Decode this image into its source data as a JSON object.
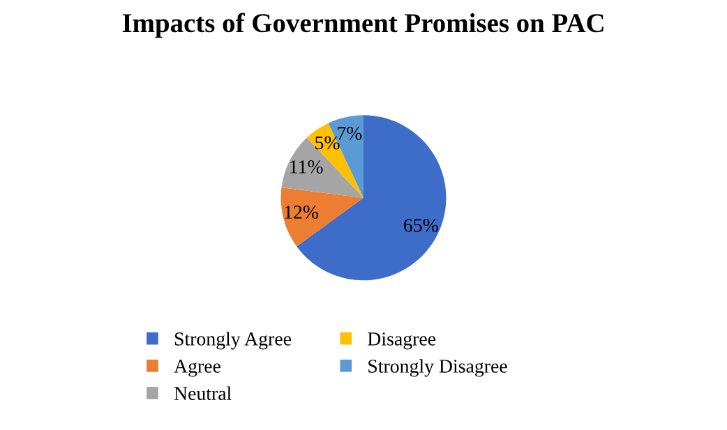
{
  "chart_data": {
    "type": "pie",
    "title": "Impacts of Government Promises on PAC",
    "categories": [
      "Strongly Agree",
      "Agree",
      "Neutral",
      "Disagree",
      "Strongly Disagree"
    ],
    "values": [
      65,
      12,
      11,
      5,
      7
    ],
    "colors": [
      "#3d6cc9",
      "#ed7d31",
      "#a5a5a5",
      "#ffc000",
      "#5b9bd5"
    ],
    "value_labels": [
      "65%",
      "12%",
      "11%",
      "5%",
      "7%"
    ],
    "legend": "bottom"
  }
}
